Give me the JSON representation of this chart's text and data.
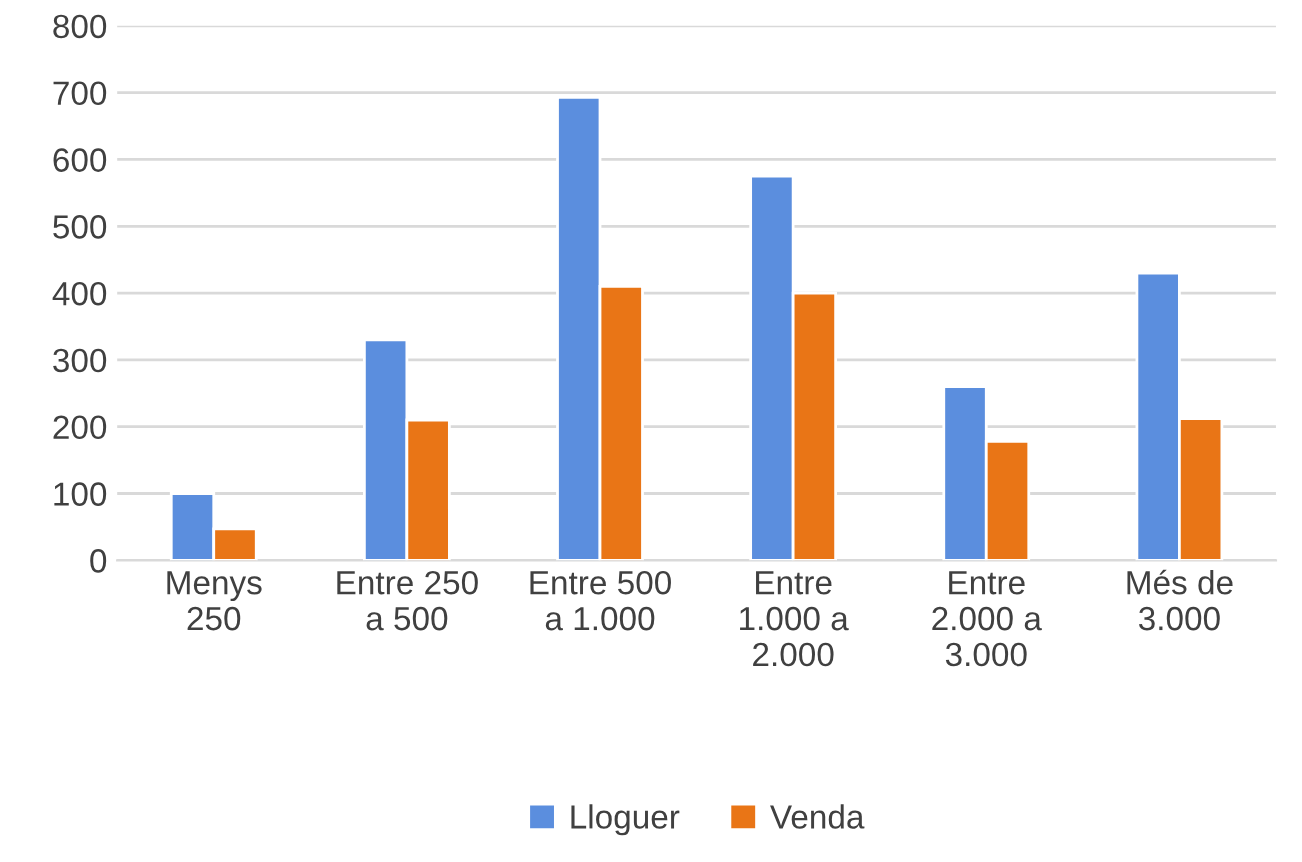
{
  "chart_data": {
    "type": "bar",
    "categories": [
      "Menys\n250",
      "Entre 250\na 500",
      "Entre 500\na 1.000",
      "Entre\n1.000 a\n2.000",
      "Entre\n2.000 a\n3.000",
      "Més de\n3.000"
    ],
    "series": [
      {
        "name": "Lloguer",
        "color": "#5b8ede",
        "values": [
          100,
          330,
          693,
          575,
          260,
          430
        ]
      },
      {
        "name": "Venda",
        "color": "#e97516",
        "values": [
          47,
          210,
          410,
          400,
          178,
          212
        ]
      }
    ],
    "ylim": [
      0,
      800
    ],
    "yticks": [
      0,
      100,
      200,
      300,
      400,
      500,
      600,
      700,
      800
    ],
    "grid": "y",
    "legend": "bottom"
  }
}
